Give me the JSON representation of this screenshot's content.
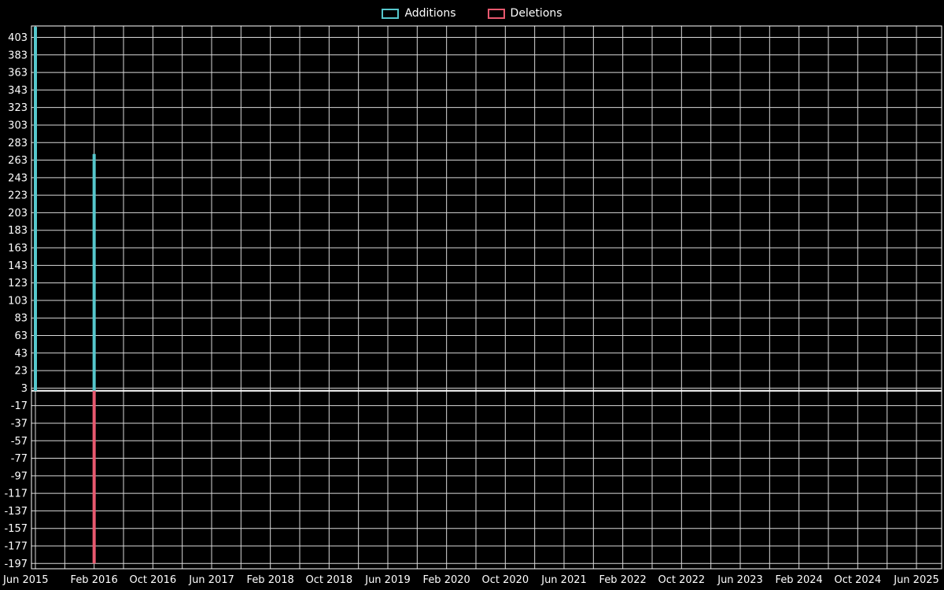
{
  "chart_data": {
    "type": "bar",
    "title": "",
    "legend_position": "top",
    "background": "#000000",
    "text_color": "#ffffff",
    "grid_color": "#d9d9d9",
    "axis_color": "#ffffff",
    "grid": true,
    "x_labels": [
      "Jun 2015",
      "Feb 2016",
      "Oct 2016",
      "Jun 2017",
      "Feb 2018",
      "Oct 2018",
      "Jun 2019",
      "Feb 2020",
      "Oct 2020",
      "Jun 2021",
      "Feb 2022",
      "Oct 2022",
      "Jun 2023",
      "Feb 2024",
      "Oct 2024",
      "Jun 2025"
    ],
    "y_ticks": [
      403,
      383,
      363,
      343,
      323,
      303,
      283,
      263,
      243,
      223,
      203,
      183,
      163,
      143,
      123,
      103,
      83,
      63,
      43,
      23,
      3,
      -17,
      -37,
      -57,
      -77,
      -97,
      -117,
      -137,
      -157,
      -177,
      -197
    ],
    "ylim": [
      -203,
      416
    ],
    "series": [
      {
        "name": "Additions",
        "color": "#56c7cc",
        "points": [
          {
            "x": "Jun 2015",
            "value": 415
          },
          {
            "x": "Feb 2016",
            "value": 270
          }
        ]
      },
      {
        "name": "Deletions",
        "color": "#e8596f",
        "points": [
          {
            "x": "Feb 2016",
            "value": -197
          }
        ]
      }
    ]
  }
}
